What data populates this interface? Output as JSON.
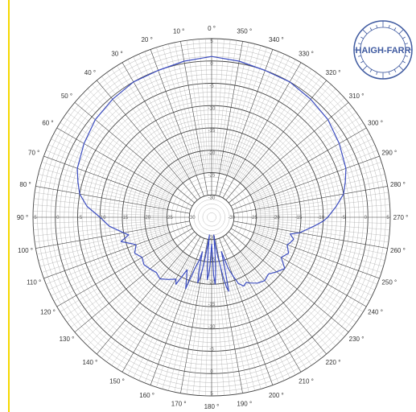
{
  "colors": {
    "accent": "#3b4cc0",
    "logo": "#3f5aa0",
    "grid_major": "#444444",
    "grid_minor": "#9a9a9a",
    "stripe": "#f5d800"
  },
  "logo": {
    "text": "HAIGH-FARR",
    "icon": "compass-rose-logo"
  },
  "chart_data": {
    "type": "polar-line",
    "title": "",
    "angle_labels": [
      "0 °",
      "10 °",
      "20 °",
      "30 °",
      "40 °",
      "50 °",
      "60 °",
      "70 °",
      "80 °",
      "90 °",
      "100 °",
      "110 °",
      "120 °",
      "130 °",
      "140 °",
      "150 °",
      "160 °",
      "170 °",
      "180 °",
      "190 °",
      "200 °",
      "210 °",
      "220 °",
      "230 °",
      "240 °",
      "250 °",
      "260 °",
      "270 °",
      "280 °",
      "290 °",
      "300 °",
      "310 °",
      "320 °",
      "330 °",
      "340 °",
      "350 °"
    ],
    "radial_ticks": [
      "5",
      "0",
      "-5",
      "-10",
      "-15",
      "-20",
      "-25",
      "-30"
    ],
    "r_range": [
      -35,
      5
    ],
    "grid": true,
    "series": [
      {
        "angles": [
          0,
          10,
          20,
          30,
          40,
          50,
          60,
          70,
          75,
          80,
          85,
          90,
          95,
          100,
          102,
          105,
          108,
          110,
          115,
          120,
          125,
          130,
          135,
          140,
          145,
          150,
          152,
          155,
          158,
          160,
          162,
          164,
          165,
          166,
          167,
          168,
          169,
          170,
          171,
          172,
          173,
          174,
          175,
          176,
          177,
          178,
          179,
          180,
          181,
          182,
          183,
          184,
          185,
          186,
          187,
          188,
          189,
          190,
          191,
          192,
          193,
          194,
          195,
          196,
          198,
          200,
          202,
          205,
          208,
          210,
          215,
          220,
          225,
          230,
          235,
          240,
          245,
          250,
          252,
          255,
          258,
          260,
          265,
          268,
          270,
          275,
          280,
          285,
          290,
          300,
          310,
          320,
          330,
          340,
          350,
          360
        ],
        "values": [
          1,
          0.5,
          0,
          0,
          -0.5,
          -1,
          -2,
          -3,
          -4,
          -5,
          -7,
          -10,
          -12,
          -15,
          -16,
          -14,
          -16,
          -17,
          -16,
          -17,
          -16.5,
          -17,
          -17.5,
          -17,
          -18,
          -19,
          -18,
          -22,
          -20,
          -18,
          -23,
          -25,
          -27,
          -25,
          -22,
          -20,
          -21,
          -23,
          -26,
          -29,
          -31,
          -28,
          -24,
          -21,
          -22,
          -24,
          -27,
          -29,
          -27,
          -22,
          -20,
          -22,
          -25,
          -29,
          -31,
          -28,
          -26,
          -24,
          -21,
          -19,
          -18,
          -22,
          -25,
          -27,
          -23,
          -21,
          -19,
          -18,
          -18.5,
          -18,
          -17,
          -16.5,
          -17,
          -16,
          -15,
          -17,
          -16,
          -17,
          -16.5,
          -16,
          -17,
          -15,
          -12,
          -10,
          -9,
          -7,
          -5,
          -4,
          -3,
          -2,
          -1,
          -0.5,
          0,
          0,
          0.5,
          1
        ]
      }
    ]
  }
}
